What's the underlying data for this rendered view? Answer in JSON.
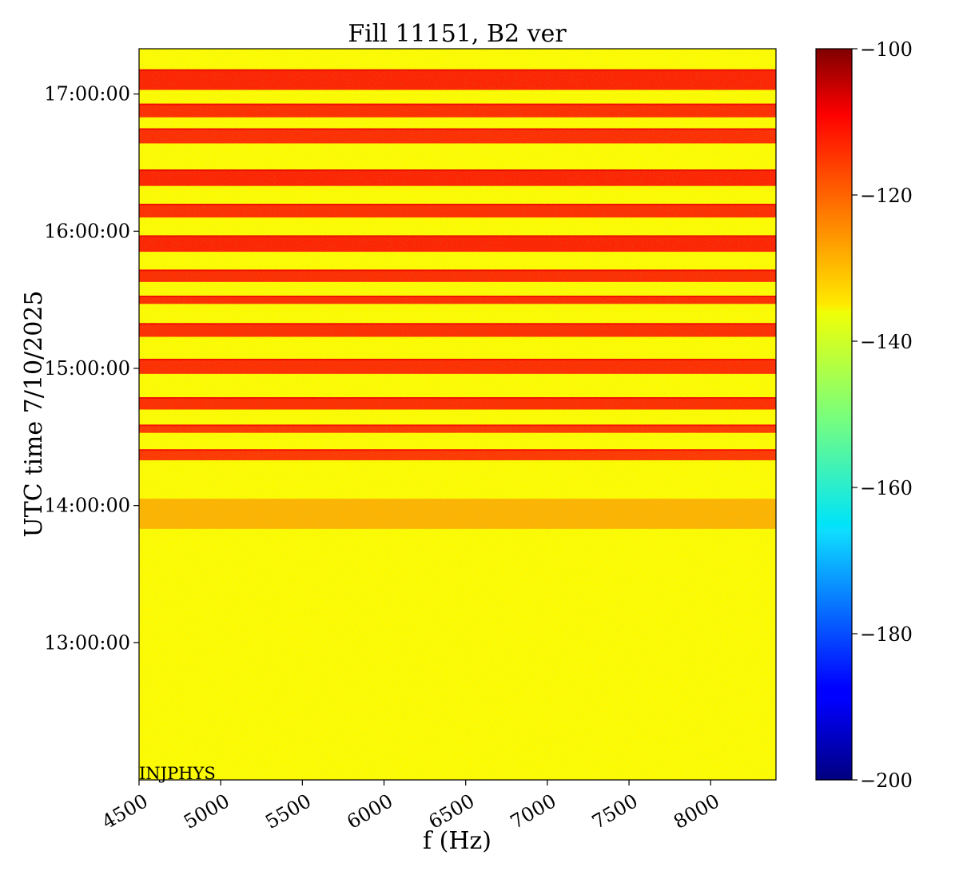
{
  "chart_data": {
    "type": "heatmap",
    "title": "Fill 11151, B2 ver",
    "xlabel": "f (Hz)",
    "ylabel": "UTC time 7/10/2025",
    "xlim": [
      4500,
      8400
    ],
    "ylim_hours": [
      12.0,
      17.33
    ],
    "xticks": [
      4500,
      5000,
      5500,
      6000,
      6500,
      7000,
      7500,
      8000
    ],
    "xtick_labels": [
      "4500",
      "5000",
      "5500",
      "6000",
      "6500",
      "7000",
      "7500",
      "8000"
    ],
    "yticks_hours": [
      13,
      14,
      15,
      16,
      17
    ],
    "ytick_labels": [
      "13:00:00",
      "14:00:00",
      "15:00:00",
      "16:00:00",
      "17:00:00"
    ],
    "colorbar": {
      "min": -200,
      "max": -100,
      "ticks": [
        -100,
        -120,
        -140,
        -160,
        -180,
        -200
      ],
      "tick_labels": [
        "−100",
        "−120",
        "−140",
        "−160",
        "−180",
        "−200"
      ],
      "colormap": "jet"
    },
    "background_level": -137,
    "mode_label": "INJPHYS",
    "bands": [
      {
        "start_hour": 13.83,
        "end_hour": 14.05,
        "level": -130
      },
      {
        "start_hour": 14.33,
        "end_hour": 14.41,
        "level": -118
      },
      {
        "start_hour": 14.53,
        "end_hour": 14.59,
        "level": -118
      },
      {
        "start_hour": 14.7,
        "end_hour": 14.79,
        "level": -117
      },
      {
        "start_hour": 14.96,
        "end_hour": 15.07,
        "level": -117
      },
      {
        "start_hour": 15.23,
        "end_hour": 15.33,
        "level": -117
      },
      {
        "start_hour": 15.47,
        "end_hour": 15.53,
        "level": -117
      },
      {
        "start_hour": 15.63,
        "end_hour": 15.72,
        "level": -117
      },
      {
        "start_hour": 15.85,
        "end_hour": 15.97,
        "level": -116
      },
      {
        "start_hour": 16.1,
        "end_hour": 16.2,
        "level": -117
      },
      {
        "start_hour": 16.33,
        "end_hour": 16.45,
        "level": -116
      },
      {
        "start_hour": 16.64,
        "end_hour": 16.75,
        "level": -117
      },
      {
        "start_hour": 16.83,
        "end_hour": 16.93,
        "level": -117
      },
      {
        "start_hour": 17.03,
        "end_hour": 17.18,
        "level": -116
      }
    ]
  }
}
